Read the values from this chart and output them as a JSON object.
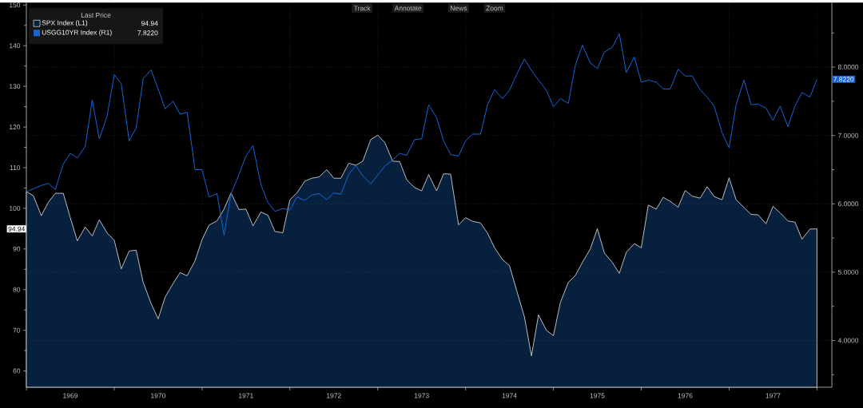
{
  "chart_data": {
    "type": "area",
    "legend_title": "Last Price",
    "annotations": [
      "Track",
      "Annotate",
      "News",
      "Zoom",
      "94.94",
      "7.8220",
      "94.94",
      "7.8220"
    ],
    "x": [
      "1969-01",
      "1969-02",
      "1969-03",
      "1969-04",
      "1969-05",
      "1969-06",
      "1969-07",
      "1969-08",
      "1969-09",
      "1969-10",
      "1969-11",
      "1969-12",
      "1970-01",
      "1970-02",
      "1970-03",
      "1970-04",
      "1970-05",
      "1970-06",
      "1970-07",
      "1970-08",
      "1970-09",
      "1970-10",
      "1970-11",
      "1970-12",
      "1971-01",
      "1971-02",
      "1971-03",
      "1971-04",
      "1971-05",
      "1971-06",
      "1971-07",
      "1971-08",
      "1971-09",
      "1971-10",
      "1971-11",
      "1971-12",
      "1972-01",
      "1972-02",
      "1972-03",
      "1972-04",
      "1972-05",
      "1972-06",
      "1972-07",
      "1972-08",
      "1972-09",
      "1972-10",
      "1972-11",
      "1972-12",
      "1973-01",
      "1973-02",
      "1973-03",
      "1973-04",
      "1973-05",
      "1973-06",
      "1973-07",
      "1973-08",
      "1973-09",
      "1973-10",
      "1973-11",
      "1973-12",
      "1974-01",
      "1974-02",
      "1974-03",
      "1974-04",
      "1974-05",
      "1974-06",
      "1974-07",
      "1974-08",
      "1974-09",
      "1974-10",
      "1974-11",
      "1974-12",
      "1975-01",
      "1975-02",
      "1975-03",
      "1975-04",
      "1975-05",
      "1975-06",
      "1975-07",
      "1975-08",
      "1975-09",
      "1975-10",
      "1975-11",
      "1975-12",
      "1976-01",
      "1976-02",
      "1976-03",
      "1976-04",
      "1976-05",
      "1976-06",
      "1976-07",
      "1976-08",
      "1976-09",
      "1976-10",
      "1976-11",
      "1976-12",
      "1977-01",
      "1977-02",
      "1977-03",
      "1977-04",
      "1977-05",
      "1977-06",
      "1977-07",
      "1977-08",
      "1977-09",
      "1977-10",
      "1977-11",
      "1977-12",
      "1978-01"
    ],
    "series": [
      {
        "name": "SPX Index  (L1)",
        "color": "#06203e",
        "values": [
          104.1,
          103.1,
          98.2,
          101.5,
          103.7,
          103.7,
          97.7,
          92.0,
          95.4,
          93.2,
          97.2,
          93.9,
          92.2,
          85.1,
          89.5,
          89.7,
          81.8,
          76.6,
          72.8,
          78.2,
          81.5,
          84.2,
          83.4,
          87.1,
          92.3,
          95.9,
          96.9,
          99.8,
          103.8,
          99.7,
          99.8,
          95.7,
          99.1,
          98.3,
          94.3,
          94.0,
          102.1,
          103.8,
          106.7,
          107.4,
          107.7,
          109.5,
          107.4,
          107.4,
          111.1,
          110.6,
          111.6,
          116.9,
          118.0,
          116.2,
          111.6,
          111.5,
          107.0,
          105.1,
          104.3,
          108.3,
          104.3,
          108.5,
          108.4,
          95.9,
          97.7,
          96.8,
          96.4,
          93.9,
          90.3,
          87.4,
          85.9,
          79.9,
          73.3,
          63.7,
          73.8,
          70.0,
          68.7,
          76.9,
          81.8,
          83.5,
          86.7,
          90.0,
          95.0,
          89.0,
          86.7,
          84.0,
          89.2,
          91.3,
          90.3,
          100.8,
          99.8,
          102.7,
          101.7,
          100.3,
          104.4,
          103.0,
          102.5,
          105.3,
          102.9,
          102.1,
          107.5,
          102.1,
          100.2,
          98.5,
          98.4,
          96.2,
          100.5,
          98.9,
          96.9,
          96.6,
          92.4,
          94.9,
          94.94
        ]
      },
      {
        "name": "USGG10YR Index  (R1)",
        "type": "line",
        "axis": "y2",
        "color": "#1565d8",
        "values": [
          6.18,
          6.22,
          6.27,
          6.3,
          6.21,
          6.58,
          6.74,
          6.67,
          6.84,
          7.52,
          6.95,
          7.29,
          7.89,
          7.76,
          6.92,
          7.11,
          7.83,
          7.96,
          7.68,
          7.39,
          7.5,
          7.31,
          7.34,
          6.5,
          6.5,
          6.1,
          6.15,
          5.54,
          6.15,
          6.43,
          6.7,
          6.85,
          6.28,
          6.02,
          5.89,
          5.93,
          5.91,
          6.1,
          6.05,
          6.13,
          6.15,
          6.06,
          6.16,
          6.14,
          6.43,
          6.56,
          6.41,
          6.29,
          6.42,
          6.55,
          6.64,
          6.74,
          6.71,
          6.94,
          6.95,
          7.45,
          7.26,
          6.92,
          6.72,
          6.7,
          6.92,
          7.02,
          7.02,
          7.45,
          7.67,
          7.54,
          7.66,
          7.89,
          8.12,
          7.95,
          7.81,
          7.66,
          7.42,
          7.54,
          7.47,
          8.03,
          8.32,
          8.06,
          7.98,
          8.22,
          8.29,
          8.49,
          7.92,
          8.15,
          7.78,
          7.81,
          7.78,
          7.68,
          7.68,
          7.97,
          7.87,
          7.87,
          7.67,
          7.56,
          7.43,
          7.04,
          6.82,
          7.45,
          7.81,
          7.45,
          7.46,
          7.4,
          7.22,
          7.43,
          7.13,
          7.43,
          7.63,
          7.56,
          7.822
        ]
      }
    ],
    "xlim": [
      "1969-01",
      "1978-03"
    ],
    "xticks": [
      {
        "value": "1969-01",
        "label": null
      },
      {
        "value": "1970-01",
        "label": null
      },
      {
        "value": "1971-01",
        "label": null
      },
      {
        "value": "1972-01",
        "label": null
      },
      {
        "value": "1973-01",
        "label": null
      },
      {
        "value": "1974-01",
        "label": null
      },
      {
        "value": "1975-01",
        "label": null
      },
      {
        "value": "1976-01",
        "label": null
      },
      {
        "value": "1977-01",
        "label": null
      },
      {
        "value": "1978-01",
        "label": null
      },
      {
        "value": "1969-07",
        "label": "1969"
      },
      {
        "value": "1970-07",
        "label": "1970"
      },
      {
        "value": "1971-07",
        "label": "1971"
      },
      {
        "value": "1972-07",
        "label": "1972"
      },
      {
        "value": "1973-07",
        "label": "1973"
      },
      {
        "value": "1974-07",
        "label": "1974"
      },
      {
        "value": "1975-07",
        "label": "1975"
      },
      {
        "value": "1976-07",
        "label": "1976"
      },
      {
        "value": "1977-07",
        "label": "1977"
      }
    ],
    "ylim": [
      56.0,
      150.6
    ],
    "yticks": [
      60,
      70,
      80,
      90,
      100,
      110,
      120,
      130,
      140,
      150,
      {
        "value": 65,
        "label": null
      },
      {
        "value": 75,
        "label": null
      },
      {
        "value": 85,
        "label": null
      },
      {
        "value": 95,
        "label": null
      },
      {
        "value": 105,
        "label": null
      },
      {
        "value": 115,
        "label": null
      },
      {
        "value": 125,
        "label": null
      },
      {
        "value": 135,
        "label": null
      },
      {
        "value": 145,
        "label": null
      }
    ],
    "y2lim": [
      3.317,
      8.944
    ],
    "y2ticks": [
      {
        "value": 4,
        "label": "4.0000"
      },
      {
        "value": 5,
        "label": "5.0000"
      },
      {
        "value": 6,
        "label": "6.0000"
      },
      {
        "value": 7,
        "label": "7.0000"
      },
      {
        "value": 8,
        "label": "8.0000"
      },
      {
        "value": 3.5,
        "label": null
      },
      {
        "value": 4.5,
        "label": null
      },
      {
        "value": 5.5,
        "label": null
      },
      {
        "value": 6.5,
        "label": null
      },
      {
        "value": 7.5,
        "label": null
      },
      {
        "value": 8.5,
        "label": null
      }
    ],
    "grid": true,
    "legend": "top left"
  }
}
